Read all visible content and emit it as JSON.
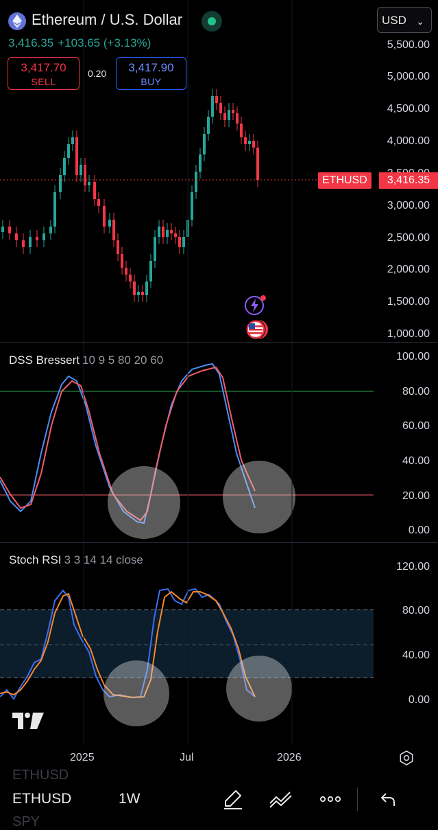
{
  "header": {
    "title": "Ethereum / U.S. Dollar",
    "currency": "USD",
    "price": "3,416.35",
    "change": "+103.65 (+3.13%)"
  },
  "trade": {
    "sell_price": "3,417.70",
    "sell_label": "SELL",
    "spread": "0.20",
    "buy_price": "3,417.90",
    "buy_label": "BUY"
  },
  "price_axis": [
    "5,500.00",
    "5,000.00",
    "4,500.00",
    "4,000.00",
    "3,500.00",
    "3,000.00",
    "2,500.00",
    "2,000.00",
    "1,500.00",
    "1,000.00"
  ],
  "last_price": {
    "ticker": "ETHUSD",
    "value": "3,416.35"
  },
  "dss": {
    "name": "DSS Bressert",
    "params": "10 9 5 80 20 60",
    "axis": [
      "100.00",
      "80.00",
      "60.00",
      "40.00",
      "20.00",
      "0.00"
    ]
  },
  "stoch": {
    "name": "Stoch RSI",
    "params": "3 3 14 14 close",
    "axis": [
      "120.00",
      "80.00",
      "40.00",
      "0.00"
    ]
  },
  "time_axis": [
    "2025",
    "Jul",
    "2026"
  ],
  "bottom": {
    "ghost_top": "ETHUSD",
    "symbol": "ETHUSD",
    "interval": "1W",
    "ghost_bottom": "SPY"
  },
  "icons": {
    "draw": "pencil-icon",
    "trend": "trend-lines-icon",
    "more": "more-dots-icon",
    "undo": "undo-icon",
    "settings": "settings-icon"
  },
  "colors": {
    "up": "#26a69a",
    "down": "#f23645",
    "dss_k": "#4c8df6",
    "dss_d": "#f05d6a",
    "stoch_k": "#3d6ef0",
    "stoch_d": "#f7892b"
  }
}
